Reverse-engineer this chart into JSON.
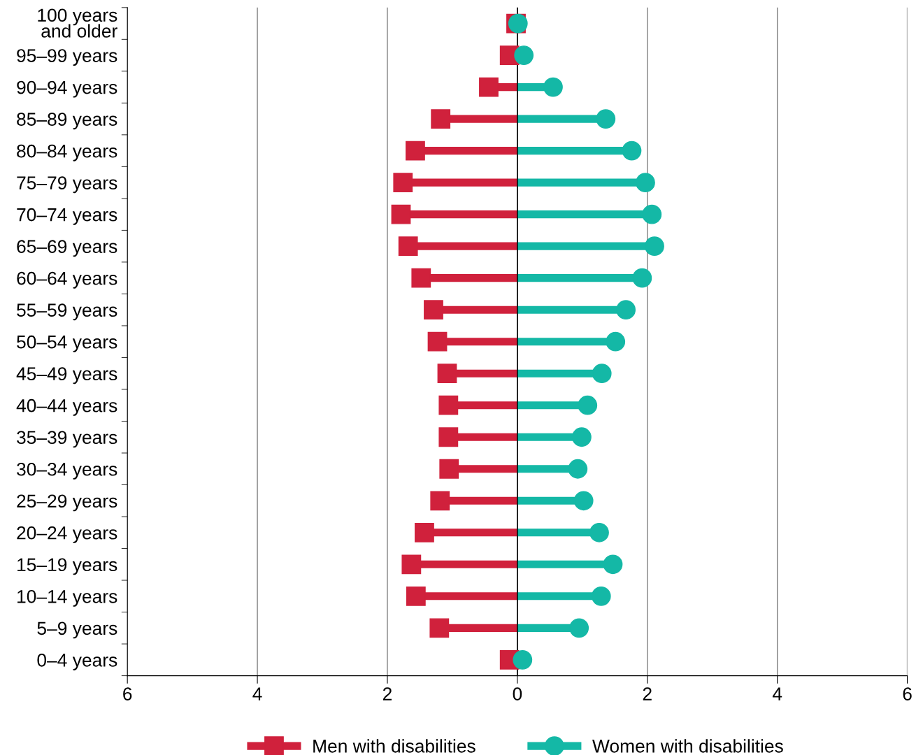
{
  "chart_data": {
    "type": "lollipop",
    "orientation": "horizontal",
    "categories": [
      "100 years\nand older",
      "95–99 years",
      "90–94 years",
      "85–89 years",
      "80–84 years",
      "75–79 years",
      "70–74 years",
      "65–69 years",
      "60–64 years",
      "55–59 years",
      "50–54 years",
      "45–49 years",
      "40–44 years",
      "35–39 years",
      "30–34 years",
      "25–29 years",
      "20–24 years",
      "15–19 years",
      "10–14 years",
      "5–9 years",
      "0–4 years"
    ],
    "series": [
      {
        "name": "Men with disabilities",
        "color": "#d0213c",
        "marker": "square",
        "values": [
          -0.02,
          -0.12,
          -0.44,
          -1.18,
          -1.57,
          -1.76,
          -1.79,
          -1.68,
          -1.48,
          -1.29,
          -1.23,
          -1.08,
          -1.06,
          -1.06,
          -1.05,
          -1.19,
          -1.43,
          -1.63,
          -1.56,
          -1.2,
          -0.12
        ]
      },
      {
        "name": "Women with disabilities",
        "color": "#14b8a6",
        "marker": "circle",
        "values": [
          0.01,
          0.1,
          0.55,
          1.36,
          1.76,
          1.97,
          2.07,
          2.11,
          1.92,
          1.67,
          1.51,
          1.3,
          1.08,
          0.99,
          0.93,
          1.02,
          1.26,
          1.47,
          1.29,
          0.95,
          0.08
        ]
      }
    ],
    "xlim": [
      -6,
      6
    ],
    "xticks": [
      {
        "value": -6,
        "label": "6"
      },
      {
        "value": -4,
        "label": "4"
      },
      {
        "value": -2,
        "label": "2"
      },
      0,
      2,
      4,
      6
    ],
    "ref_lines": [
      {
        "axis": "x",
        "value": 0,
        "label": null,
        "color": "#000000"
      }
    ],
    "grid": "x",
    "legend": "bottom"
  }
}
